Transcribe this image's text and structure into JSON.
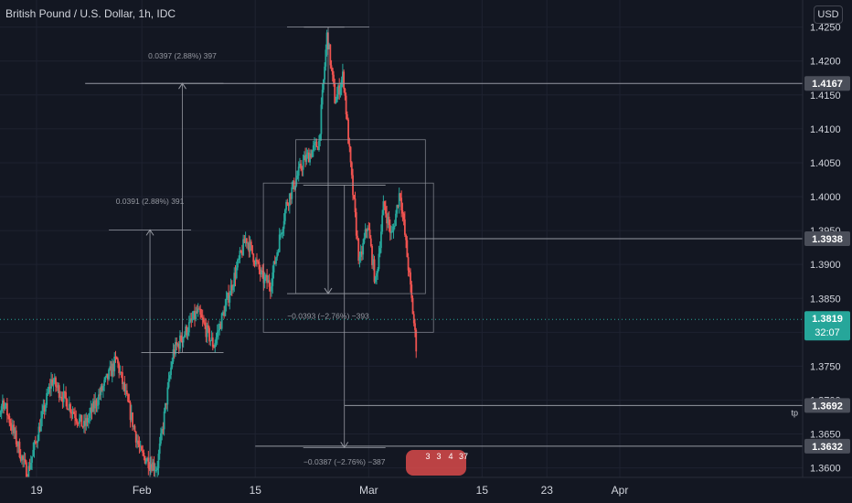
{
  "header": {
    "title": "British Pound / U.S. Dollar, 1h, IDC",
    "currency_button": "USD"
  },
  "colors": {
    "background": "#131722",
    "up": "#26a69a",
    "down": "#ef5350",
    "grid": "#1e2230",
    "drawing": "#9598a1",
    "label_bg": "#4a4e59",
    "last_price_bg": "#26a69a",
    "text": "#d1d4dc"
  },
  "chart_data": {
    "type": "candlestick",
    "y_axis": {
      "ticks": [
        "1.3600",
        "1.3650",
        "1.3700",
        "1.3750",
        "1.3800",
        "1.3850",
        "1.3900",
        "1.3950",
        "1.4000",
        "1.4050",
        "1.4100",
        "1.4150",
        "1.4200",
        "1.4250"
      ],
      "range": [
        1.3586,
        1.429
      ]
    },
    "x_axis": {
      "ticks": [
        {
          "label": "19",
          "x": "2021-01-19"
        },
        {
          "label": "Feb",
          "x": "2021-02-01"
        },
        {
          "label": "15",
          "x": "2021-02-15"
        },
        {
          "label": "Mar",
          "x": "2021-03-01"
        },
        {
          "label": "15",
          "x": "2021-03-15"
        },
        {
          "label": "23",
          "x": "2021-03-23"
        },
        {
          "label": "Apr",
          "x": "2021-04-01"
        }
      ]
    },
    "price_lines": [
      {
        "price": 1.4167,
        "label": "1.4167",
        "from": "2021-01-25"
      },
      {
        "price": 1.3938,
        "label": "1.3938",
        "from": "2021-03-06"
      },
      {
        "price": 1.3692,
        "label": "1.3692",
        "from": "2021-02-26",
        "note": "tp"
      },
      {
        "price": 1.3632,
        "label": "1.3632",
        "from": "2021-02-15"
      }
    ],
    "last_price": {
      "price": 1.3819,
      "label": "1.3819",
      "countdown": "32:07"
    },
    "measurements": [
      {
        "text": "0.0397 (2.88%) 397",
        "date": "2021-02-06",
        "from": 1.377,
        "to": 1.4167,
        "label_at": 1.4204
      },
      {
        "text": "0.0391 (2.88%) 391",
        "date": "2021-02-02",
        "from": 1.356,
        "to": 1.3951,
        "label_at": 1.3989
      },
      {
        "text": "−0.0393 (−2.76%) −393",
        "date": "2021-02-24",
        "from": 1.425,
        "to": 1.3857,
        "label_at": 1.382
      },
      {
        "text": "−0.0387 (−2.76%) −387",
        "date": "2021-02-26",
        "from": 1.4017,
        "to": 1.363,
        "label_at": 1.3605
      }
    ],
    "rectangles": [
      {
        "from_date": "2021-02-20",
        "to_date": "2021-03-08",
        "top": 1.4084,
        "bottom": 1.3857
      },
      {
        "from_date": "2021-02-16",
        "to_date": "2021-03-09",
        "top": 1.402,
        "bottom": 1.38
      }
    ],
    "peak_marker": {
      "from_date": "2021-02-21",
      "to_date": "2021-02-26",
      "price": 1.425
    },
    "series_segments": [
      {
        "date": "2021-01-13",
        "price": 1.362
      },
      {
        "date": "2021-01-15",
        "price": 1.37
      },
      {
        "date": "2021-01-18",
        "price": 1.359
      },
      {
        "date": "2021-01-21",
        "price": 1.373
      },
      {
        "date": "2021-01-25",
        "price": 1.366
      },
      {
        "date": "2021-01-29",
        "price": 1.376
      },
      {
        "date": "2021-02-01",
        "price": 1.362
      },
      {
        "date": "2021-02-03",
        "price": 1.36
      },
      {
        "date": "2021-02-05",
        "price": 1.377
      },
      {
        "date": "2021-02-08",
        "price": 1.383
      },
      {
        "date": "2021-02-10",
        "price": 1.378
      },
      {
        "date": "2021-02-12",
        "price": 1.386
      },
      {
        "date": "2021-02-14",
        "price": 1.394
      },
      {
        "date": "2021-02-16",
        "price": 1.388
      },
      {
        "date": "2021-02-17",
        "price": 1.387
      },
      {
        "date": "2021-02-19",
        "price": 1.399
      },
      {
        "date": "2021-02-21",
        "price": 1.405
      },
      {
        "date": "2021-02-23",
        "price": 1.408
      },
      {
        "date": "2021-02-24",
        "price": 1.424
      },
      {
        "date": "2021-02-25",
        "price": 1.414
      },
      {
        "date": "2021-02-26",
        "price": 1.418
      },
      {
        "date": "2021-02-27",
        "price": 1.403
      },
      {
        "date": "2021-02-28",
        "price": 1.39
      },
      {
        "date": "2021-03-01",
        "price": 1.396
      },
      {
        "date": "2021-03-02",
        "price": 1.387
      },
      {
        "date": "2021-03-03",
        "price": 1.399
      },
      {
        "date": "2021-03-04",
        "price": 1.394
      },
      {
        "date": "2021-03-05",
        "price": 1.401
      },
      {
        "date": "2021-03-06",
        "price": 1.39
      },
      {
        "date": "2021-03-07",
        "price": 1.378
      }
    ],
    "extra_labels": {
      "tp": "tp"
    },
    "event_markers": [
      "3",
      "3",
      "4",
      "37"
    ]
  }
}
